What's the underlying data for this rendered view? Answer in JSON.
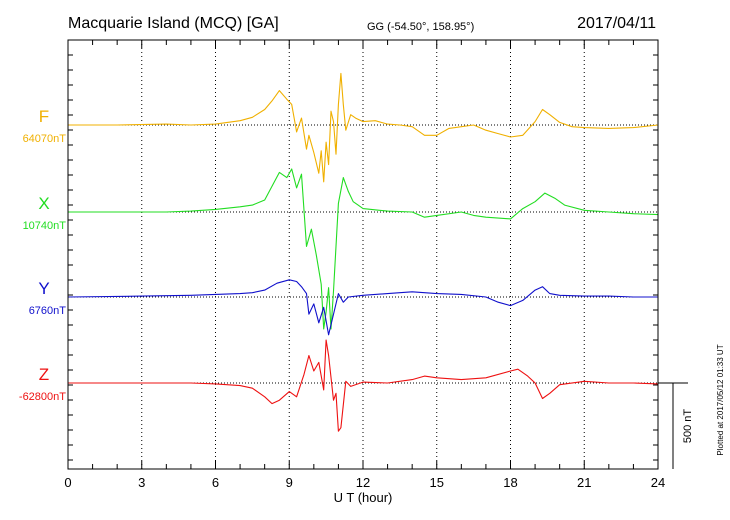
{
  "header": {
    "station": "Macquarie Island (MCQ)  [GA]",
    "coords": "GG (-54.50°, 158.95°)",
    "date": "2017/04/11"
  },
  "footer": {
    "plotted": "Plotted at 2017/05/12 01:33 UT"
  },
  "chart_data": {
    "type": "line",
    "xlabel": "U T (hour)",
    "xlim": [
      0,
      24
    ],
    "x_ticks": [
      0,
      3,
      6,
      9,
      12,
      15,
      18,
      21,
      24
    ],
    "scale_bar": {
      "label": "500 nT",
      "value_nT": 500
    },
    "series": [
      {
        "name": "F",
        "baseline_label": "64070nT",
        "baseline_nT": 64070,
        "color": "#f0b000",
        "points": [
          [
            0,
            0
          ],
          [
            2,
            0
          ],
          [
            4,
            5
          ],
          [
            5,
            0
          ],
          [
            6,
            5
          ],
          [
            7,
            25
          ],
          [
            7.5,
            45
          ],
          [
            8,
            90
          ],
          [
            8.3,
            140
          ],
          [
            8.6,
            200
          ],
          [
            8.9,
            150
          ],
          [
            9.1,
            120
          ],
          [
            9.3,
            -40
          ],
          [
            9.5,
            40
          ],
          [
            9.7,
            -140
          ],
          [
            9.8,
            -60
          ],
          [
            10,
            -160
          ],
          [
            10.2,
            -280
          ],
          [
            10.3,
            -150
          ],
          [
            10.4,
            -330
          ],
          [
            10.5,
            -100
          ],
          [
            10.6,
            -230
          ],
          [
            10.7,
            80
          ],
          [
            10.8,
            20
          ],
          [
            10.9,
            -170
          ],
          [
            11,
            120
          ],
          [
            11.1,
            300
          ],
          [
            11.2,
            120
          ],
          [
            11.3,
            -30
          ],
          [
            11.5,
            60
          ],
          [
            11.7,
            40
          ],
          [
            12,
            20
          ],
          [
            12.5,
            25
          ],
          [
            13,
            5
          ],
          [
            13.5,
            0
          ],
          [
            14,
            -10
          ],
          [
            14.5,
            -60
          ],
          [
            15,
            -60
          ],
          [
            15.5,
            -20
          ],
          [
            16,
            -10
          ],
          [
            16.5,
            0
          ],
          [
            17,
            -30
          ],
          [
            17.5,
            -50
          ],
          [
            18,
            -70
          ],
          [
            18.5,
            -60
          ],
          [
            19,
            20
          ],
          [
            19.3,
            90
          ],
          [
            19.6,
            60
          ],
          [
            20,
            15
          ],
          [
            20.5,
            -10
          ],
          [
            21,
            -15
          ],
          [
            22,
            -20
          ],
          [
            23,
            -15
          ],
          [
            24,
            0
          ]
        ]
      },
      {
        "name": "X",
        "baseline_label": "10740nT",
        "baseline_nT": 10740,
        "color": "#22dd22",
        "points": [
          [
            0,
            0
          ],
          [
            2,
            0
          ],
          [
            4,
            0
          ],
          [
            5,
            5
          ],
          [
            6,
            15
          ],
          [
            7,
            30
          ],
          [
            7.5,
            40
          ],
          [
            8,
            70
          ],
          [
            8.3,
            150
          ],
          [
            8.6,
            230
          ],
          [
            8.9,
            200
          ],
          [
            9.1,
            250
          ],
          [
            9.3,
            140
          ],
          [
            9.5,
            220
          ],
          [
            9.7,
            -200
          ],
          [
            9.9,
            -100
          ],
          [
            10.1,
            -250
          ],
          [
            10.3,
            -420
          ],
          [
            10.4,
            -680
          ],
          [
            10.5,
            -580
          ],
          [
            10.6,
            -440
          ],
          [
            10.7,
            -680
          ],
          [
            10.8,
            -460
          ],
          [
            11,
            50
          ],
          [
            11.2,
            200
          ],
          [
            11.4,
            120
          ],
          [
            11.6,
            60
          ],
          [
            11.8,
            40
          ],
          [
            12,
            20
          ],
          [
            13,
            5
          ],
          [
            14,
            0
          ],
          [
            14.5,
            -30
          ],
          [
            15,
            -20
          ],
          [
            16,
            0
          ],
          [
            16.5,
            -20
          ],
          [
            17,
            -30
          ],
          [
            18,
            -40
          ],
          [
            18.5,
            20
          ],
          [
            19,
            60
          ],
          [
            19.4,
            110
          ],
          [
            19.8,
            80
          ],
          [
            20.2,
            40
          ],
          [
            21,
            10
          ],
          [
            22,
            0
          ],
          [
            23,
            -10
          ],
          [
            24,
            -15
          ]
        ]
      },
      {
        "name": "Y",
        "baseline_label": "6760nT",
        "baseline_nT": 6760,
        "color": "#1010cc",
        "points": [
          [
            0,
            0
          ],
          [
            3,
            5
          ],
          [
            5,
            10
          ],
          [
            6,
            15
          ],
          [
            7,
            20
          ],
          [
            7.5,
            25
          ],
          [
            8,
            40
          ],
          [
            8.5,
            80
          ],
          [
            9,
            100
          ],
          [
            9.3,
            90
          ],
          [
            9.5,
            60
          ],
          [
            9.7,
            20
          ],
          [
            9.8,
            -100
          ],
          [
            10,
            -40
          ],
          [
            10.2,
            -150
          ],
          [
            10.4,
            -60
          ],
          [
            10.6,
            -220
          ],
          [
            10.8,
            -100
          ],
          [
            11,
            20
          ],
          [
            11.2,
            -30
          ],
          [
            11.4,
            0
          ],
          [
            12,
            10
          ],
          [
            13,
            20
          ],
          [
            14,
            30
          ],
          [
            15,
            20
          ],
          [
            16,
            15
          ],
          [
            17,
            0
          ],
          [
            17.5,
            -30
          ],
          [
            18,
            -50
          ],
          [
            18.5,
            -20
          ],
          [
            19,
            40
          ],
          [
            19.3,
            60
          ],
          [
            19.6,
            20
          ],
          [
            20,
            10
          ],
          [
            21,
            5
          ],
          [
            22,
            5
          ],
          [
            23,
            0
          ],
          [
            24,
            0
          ]
        ]
      },
      {
        "name": "Z",
        "baseline_label": "-62800nT",
        "baseline_nT": -62800,
        "color": "#ee1111",
        "points": [
          [
            0,
            0
          ],
          [
            2,
            0
          ],
          [
            4,
            0
          ],
          [
            5,
            0
          ],
          [
            6,
            -5
          ],
          [
            7,
            -15
          ],
          [
            7.5,
            -30
          ],
          [
            8,
            -80
          ],
          [
            8.3,
            -120
          ],
          [
            8.6,
            -100
          ],
          [
            9,
            -50
          ],
          [
            9.3,
            -80
          ],
          [
            9.6,
            50
          ],
          [
            9.8,
            160
          ],
          [
            10,
            70
          ],
          [
            10.2,
            120
          ],
          [
            10.4,
            -40
          ],
          [
            10.5,
            250
          ],
          [
            10.6,
            160
          ],
          [
            10.8,
            -100
          ],
          [
            10.9,
            -60
          ],
          [
            11,
            -280
          ],
          [
            11.1,
            -260
          ],
          [
            11.3,
            10
          ],
          [
            11.5,
            -20
          ],
          [
            12,
            5
          ],
          [
            13,
            0
          ],
          [
            14,
            20
          ],
          [
            14.5,
            40
          ],
          [
            15,
            30
          ],
          [
            16,
            20
          ],
          [
            17,
            30
          ],
          [
            18,
            70
          ],
          [
            18.3,
            80
          ],
          [
            18.7,
            40
          ],
          [
            19,
            0
          ],
          [
            19.3,
            -90
          ],
          [
            19.6,
            -60
          ],
          [
            20,
            -10
          ],
          [
            21,
            10
          ],
          [
            22,
            0
          ],
          [
            23,
            0
          ],
          [
            24,
            -5
          ]
        ]
      }
    ]
  }
}
